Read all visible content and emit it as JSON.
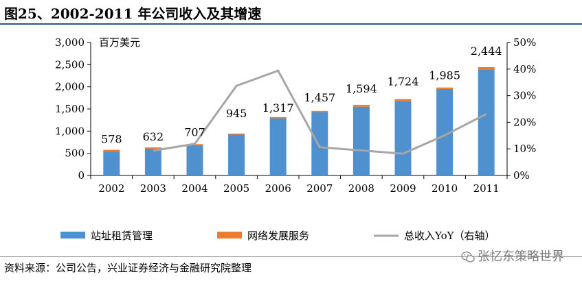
{
  "title": "图25、2002-2011 年公司收入及其增速",
  "source": "资料来源：公司公告，兴业证券经济与金融研究院整理",
  "watermark": "张忆东策略世界",
  "colors": {
    "rental": "#4f90cf",
    "network": "#ed7d31",
    "yoy": "#a6a6a6",
    "rule": "#2f5597"
  },
  "chart_data": {
    "type": "bar",
    "stacked": true,
    "categories": [
      "2002",
      "2003",
      "2004",
      "2005",
      "2006",
      "2007",
      "2008",
      "2009",
      "2010",
      "2011"
    ],
    "series": [
      {
        "name": "站址租赁管理",
        "type": "bar",
        "axis": "left",
        "values": [
          540,
          602,
          680,
          920,
          1290,
          1430,
          1550,
          1680,
          1950,
          2395
        ]
      },
      {
        "name": "网络发展服务",
        "type": "bar",
        "axis": "left",
        "values": [
          38,
          30,
          27,
          25,
          27,
          27,
          44,
          44,
          35,
          49
        ]
      },
      {
        "name": "总收入YoY（右轴）",
        "type": "line",
        "axis": "right",
        "values": [
          null,
          9.3,
          11.9,
          33.7,
          39.4,
          10.6,
          9.4,
          8.2,
          15.1,
          23.1
        ]
      }
    ],
    "totals": [
      578,
      632,
      707,
      945,
      1317,
      1457,
      1594,
      1724,
      1985,
      2444
    ],
    "total_labels": [
      "578",
      "632",
      "707",
      "945",
      "1,317",
      "1,457",
      "1,594",
      "1,724",
      "1,985",
      "2,444"
    ],
    "ylabel": "百万美元",
    "ylim": [
      0,
      3000
    ],
    "y_ticks": [
      "0",
      "500",
      "1,000",
      "1,500",
      "2,000",
      "2,500",
      "3,000"
    ],
    "y2lim": [
      0,
      50
    ],
    "y2_ticks": [
      "0%",
      "10%",
      "20%",
      "30%",
      "40%",
      "50%"
    ],
    "legend_position": "bottom",
    "grid": false
  }
}
